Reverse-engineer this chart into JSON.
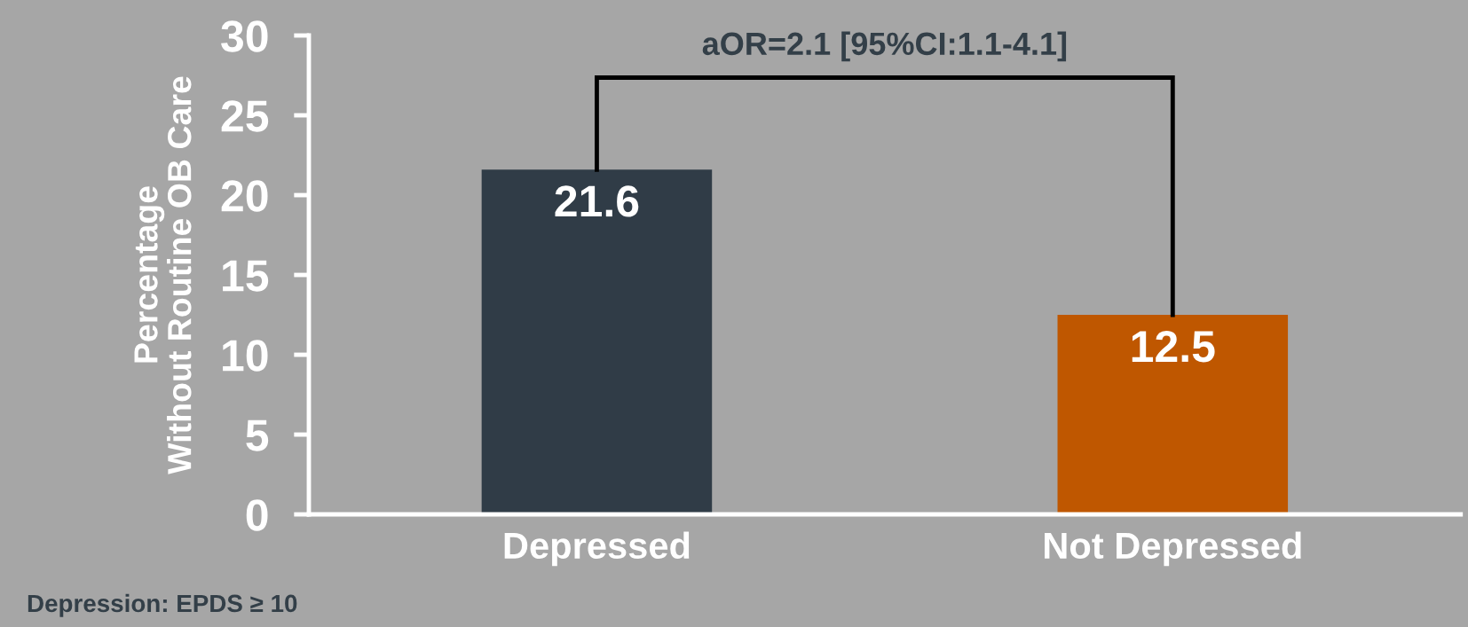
{
  "chart_data": {
    "type": "bar",
    "categories": [
      "Depressed",
      "Not Depressed"
    ],
    "values": [
      21.6,
      12.5
    ],
    "colors": [
      "#303c47",
      "#bf5700"
    ],
    "ylabel": "Percentage\nWithout Routine OB Care",
    "ylim": [
      0,
      30
    ],
    "yticks": [
      0,
      5,
      10,
      15,
      20,
      25,
      30
    ],
    "data_labels": true,
    "annotations": [
      "aOR=2.1 [95%CI:1.1-4.1]",
      "Depression: EPDS ≥ 10"
    ]
  }
}
